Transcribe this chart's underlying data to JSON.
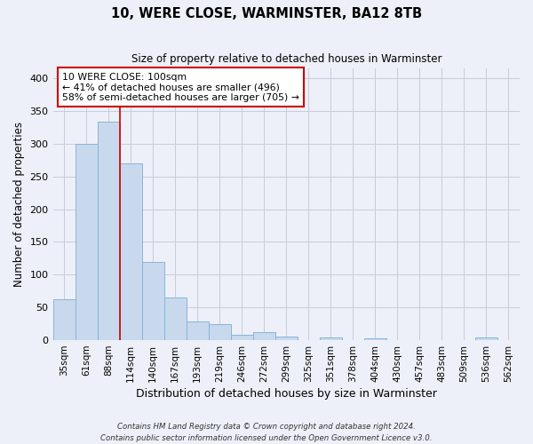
{
  "title": "10, WERE CLOSE, WARMINSTER, BA12 8TB",
  "subtitle": "Size of property relative to detached houses in Warminster",
  "xlabel": "Distribution of detached houses by size in Warminster",
  "ylabel": "Number of detached properties",
  "bar_color": "#c8d9ee",
  "bar_edge_color": "#8ab4d8",
  "categories": [
    "35sqm",
    "61sqm",
    "88sqm",
    "114sqm",
    "140sqm",
    "167sqm",
    "193sqm",
    "219sqm",
    "246sqm",
    "272sqm",
    "299sqm",
    "325sqm",
    "351sqm",
    "378sqm",
    "404sqm",
    "430sqm",
    "457sqm",
    "483sqm",
    "509sqm",
    "536sqm",
    "562sqm"
  ],
  "values": [
    63,
    300,
    333,
    270,
    119,
    65,
    29,
    25,
    8,
    12,
    5,
    0,
    4,
    0,
    3,
    0,
    0,
    0,
    0,
    4,
    0
  ],
  "ylim": [
    0,
    415
  ],
  "yticks": [
    0,
    50,
    100,
    150,
    200,
    250,
    300,
    350,
    400
  ],
  "red_line_x": 2.5,
  "annotation_line1": "10 WERE CLOSE: 100sqm",
  "annotation_line2": "← 41% of detached houses are smaller (496)",
  "annotation_line3": "58% of semi-detached houses are larger (705) →",
  "annotation_box_color": "white",
  "annotation_box_edge_color": "#cc0000",
  "red_line_color": "#cc0000",
  "grid_color": "#c8ccd8",
  "background_color": "#edf0f8",
  "footer_line1": "Contains HM Land Registry data © Crown copyright and database right 2024.",
  "footer_line2": "Contains public sector information licensed under the Open Government Licence v3.0."
}
